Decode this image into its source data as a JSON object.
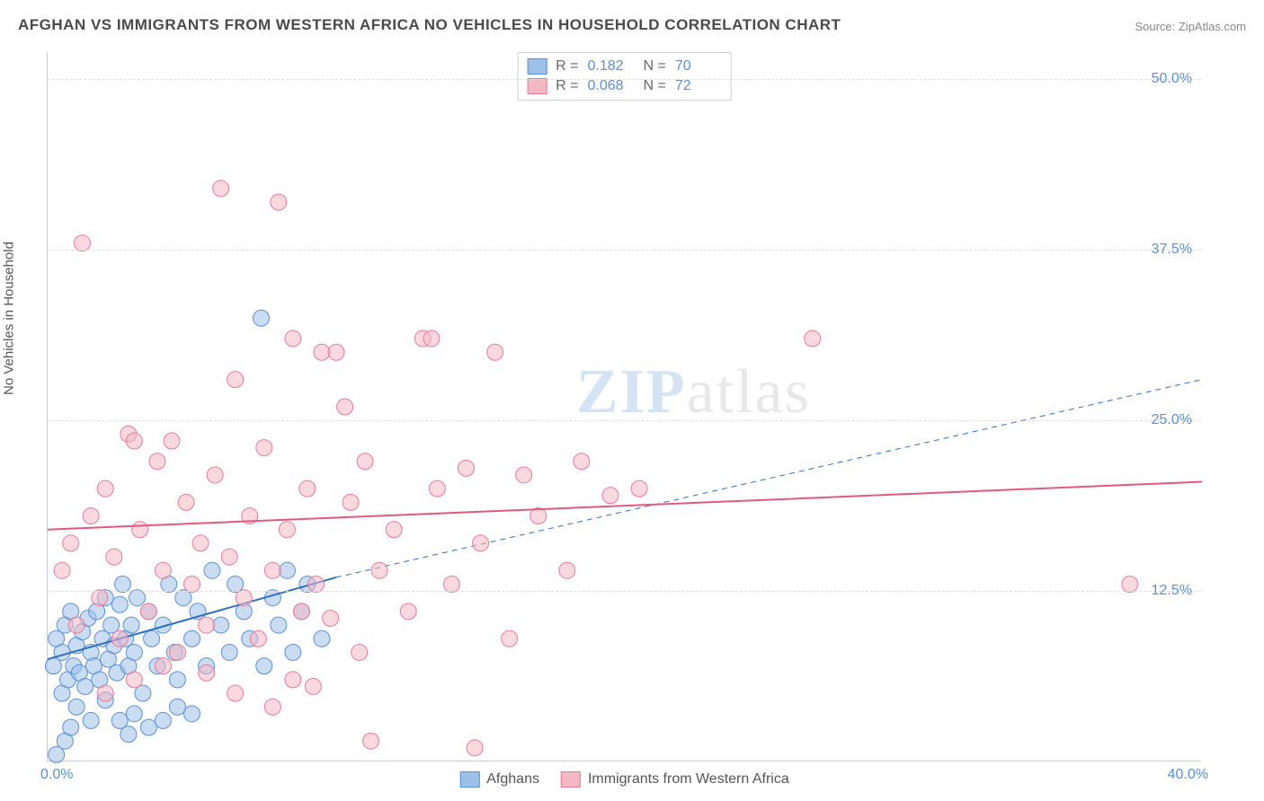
{
  "title": "AFGHAN VS IMMIGRANTS FROM WESTERN AFRICA NO VEHICLES IN HOUSEHOLD CORRELATION CHART",
  "source": "Source: ZipAtlas.com",
  "ylabel": "No Vehicles in Household",
  "watermark_bold": "ZIP",
  "watermark_rest": "atlas",
  "chart": {
    "type": "scatter",
    "xlim": [
      0,
      40
    ],
    "ylim": [
      0,
      52
    ],
    "xticks": [
      {
        "v": 0,
        "label": "0.0%"
      },
      {
        "v": 40,
        "label": "40.0%"
      }
    ],
    "yticks": [
      {
        "v": 12.5,
        "label": "12.5%"
      },
      {
        "v": 25,
        "label": "25.0%"
      },
      {
        "v": 37.5,
        "label": "37.5%"
      },
      {
        "v": 50,
        "label": "50.0%"
      }
    ],
    "grid_y": [
      12.5,
      25,
      37.5,
      50
    ],
    "grid_color": "#e0e0e0",
    "background_color": "#ffffff",
    "marker_radius": 9,
    "marker_opacity": 0.55,
    "marker_stroke_width": 1,
    "series": [
      {
        "name": "Afghans",
        "fill": "#9cc0e7",
        "stroke": "#5a8fd6",
        "R": "0.182",
        "N": "70",
        "regression": {
          "x1": 0,
          "y1": 7.5,
          "x2": 10,
          "y2": 13.5,
          "color": "#2e6fc0",
          "width": 2,
          "dash": "none",
          "ext_x2": 40,
          "ext_y2": 28,
          "ext_dash": "6 5",
          "ext_width": 1
        },
        "points": [
          [
            0.2,
            7
          ],
          [
            0.3,
            9
          ],
          [
            0.5,
            5
          ],
          [
            0.5,
            8
          ],
          [
            0.6,
            10
          ],
          [
            0.7,
            6
          ],
          [
            0.8,
            11
          ],
          [
            0.9,
            7
          ],
          [
            1.0,
            8.5
          ],
          [
            1.1,
            6.5
          ],
          [
            1.2,
            9.5
          ],
          [
            1.3,
            5.5
          ],
          [
            1.4,
            10.5
          ],
          [
            1.5,
            8
          ],
          [
            1.6,
            7
          ],
          [
            1.7,
            11
          ],
          [
            1.8,
            6
          ],
          [
            1.9,
            9
          ],
          [
            2.0,
            12
          ],
          [
            2.1,
            7.5
          ],
          [
            2.2,
            10
          ],
          [
            2.3,
            8.5
          ],
          [
            2.4,
            6.5
          ],
          [
            2.5,
            11.5
          ],
          [
            2.6,
            13
          ],
          [
            2.7,
            9
          ],
          [
            2.8,
            7
          ],
          [
            2.9,
            10
          ],
          [
            3.0,
            8
          ],
          [
            3.1,
            12
          ],
          [
            3.3,
            5
          ],
          [
            3.5,
            11
          ],
          [
            3.6,
            9
          ],
          [
            3.8,
            7
          ],
          [
            4.0,
            10
          ],
          [
            4.2,
            13
          ],
          [
            4.4,
            8
          ],
          [
            4.5,
            6
          ],
          [
            4.7,
            12
          ],
          [
            5.0,
            9
          ],
          [
            5.2,
            11
          ],
          [
            5.5,
            7
          ],
          [
            5.7,
            14
          ],
          [
            6.0,
            10
          ],
          [
            6.3,
            8
          ],
          [
            6.5,
            13
          ],
          [
            6.8,
            11
          ],
          [
            7.0,
            9
          ],
          [
            7.4,
            32.5
          ],
          [
            7.5,
            7
          ],
          [
            7.8,
            12
          ],
          [
            8.0,
            10
          ],
          [
            8.3,
            14
          ],
          [
            8.5,
            8
          ],
          [
            8.8,
            11
          ],
          [
            9.0,
            13
          ],
          [
            9.5,
            9
          ],
          [
            2.5,
            3
          ],
          [
            3.0,
            3.5
          ],
          [
            3.5,
            2.5
          ],
          [
            1.0,
            4
          ],
          [
            1.5,
            3
          ],
          [
            2.0,
            4.5
          ],
          [
            0.3,
            0.5
          ],
          [
            0.6,
            1.5
          ],
          [
            0.8,
            2.5
          ],
          [
            2.8,
            2
          ],
          [
            4.0,
            3
          ],
          [
            4.5,
            4
          ],
          [
            5.0,
            3.5
          ]
        ]
      },
      {
        "name": "Immigrants from Western Africa",
        "fill": "#f4b8c5",
        "stroke": "#e77a97",
        "R": "0.068",
        "N": "72",
        "regression": {
          "x1": 0,
          "y1": 17,
          "x2": 40,
          "y2": 20.5,
          "color": "#e05a7e",
          "width": 2,
          "dash": "none"
        },
        "points": [
          [
            0.5,
            14
          ],
          [
            0.8,
            16
          ],
          [
            1.0,
            10
          ],
          [
            1.2,
            38
          ],
          [
            1.5,
            18
          ],
          [
            1.8,
            12
          ],
          [
            2.0,
            20
          ],
          [
            2.3,
            15
          ],
          [
            2.5,
            9
          ],
          [
            2.8,
            24
          ],
          [
            3.0,
            23.5
          ],
          [
            3.2,
            17
          ],
          [
            3.5,
            11
          ],
          [
            3.8,
            22
          ],
          [
            4.0,
            14
          ],
          [
            4.3,
            23.5
          ],
          [
            4.5,
            8
          ],
          [
            4.8,
            19
          ],
          [
            5.0,
            13
          ],
          [
            5.3,
            16
          ],
          [
            5.5,
            10
          ],
          [
            5.8,
            21
          ],
          [
            6.0,
            42
          ],
          [
            6.3,
            15
          ],
          [
            6.5,
            28
          ],
          [
            6.8,
            12
          ],
          [
            7.0,
            18
          ],
          [
            7.3,
            9
          ],
          [
            7.5,
            23
          ],
          [
            7.8,
            14
          ],
          [
            8.0,
            41
          ],
          [
            8.3,
            17
          ],
          [
            8.5,
            31
          ],
          [
            8.8,
            11
          ],
          [
            9.0,
            20
          ],
          [
            9.3,
            13
          ],
          [
            9.5,
            30
          ],
          [
            9.8,
            10.5
          ],
          [
            10.0,
            30
          ],
          [
            10.3,
            26
          ],
          [
            10.5,
            19
          ],
          [
            10.8,
            8
          ],
          [
            11.0,
            22
          ],
          [
            11.5,
            14
          ],
          [
            12.0,
            17
          ],
          [
            12.5,
            11
          ],
          [
            13.0,
            31
          ],
          [
            13.3,
            31
          ],
          [
            13.5,
            20
          ],
          [
            14.0,
            13
          ],
          [
            14.5,
            21.5
          ],
          [
            15.0,
            16
          ],
          [
            15.5,
            30
          ],
          [
            16.0,
            9
          ],
          [
            16.5,
            21
          ],
          [
            17.0,
            18
          ],
          [
            18.0,
            14
          ],
          [
            18.5,
            22
          ],
          [
            19.5,
            19.5
          ],
          [
            20.5,
            20
          ],
          [
            11.2,
            1.5
          ],
          [
            14.8,
            1
          ],
          [
            6.5,
            5
          ],
          [
            7.8,
            4
          ],
          [
            8.5,
            6
          ],
          [
            9.2,
            5.5
          ],
          [
            26.5,
            31
          ],
          [
            37.5,
            13
          ],
          [
            4.0,
            7
          ],
          [
            5.5,
            6.5
          ],
          [
            3.0,
            6
          ],
          [
            2.0,
            5
          ]
        ]
      }
    ],
    "legend_bottom": [
      {
        "label": "Afghans",
        "fill": "#9cc0e7",
        "stroke": "#5a8fd6"
      },
      {
        "label": "Immigrants from Western Africa",
        "fill": "#f4b8c5",
        "stroke": "#e77a97"
      }
    ]
  }
}
